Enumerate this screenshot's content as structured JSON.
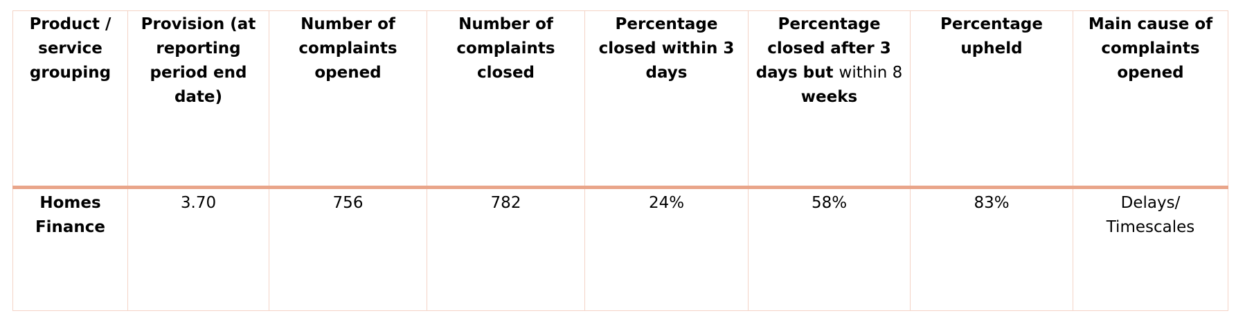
{
  "table": {
    "headers": {
      "product": "Product / service grouping",
      "provision": "Provision (at reporting period end date)",
      "opened": "Number of complaints opened",
      "closed": "Number of complaints closed",
      "within3": "Percentage closed within 3 days",
      "after3_bold_a": "Percentage closed after 3 days but",
      "after3_normal": "within 8",
      "after3_bold_b": "weeks",
      "upheld": "Percentage upheld",
      "cause": "Main cause of complaints opened"
    },
    "rows": [
      {
        "product": "Homes Finance",
        "provision": "3.70",
        "opened": "756",
        "closed": "782",
        "within3": "24%",
        "after3": "58%",
        "upheld": "83%",
        "cause": "Delays/ Timescales"
      }
    ]
  },
  "colors": {
    "grid_line": "#f4d3c6",
    "header_rule": "#e9a58a"
  }
}
